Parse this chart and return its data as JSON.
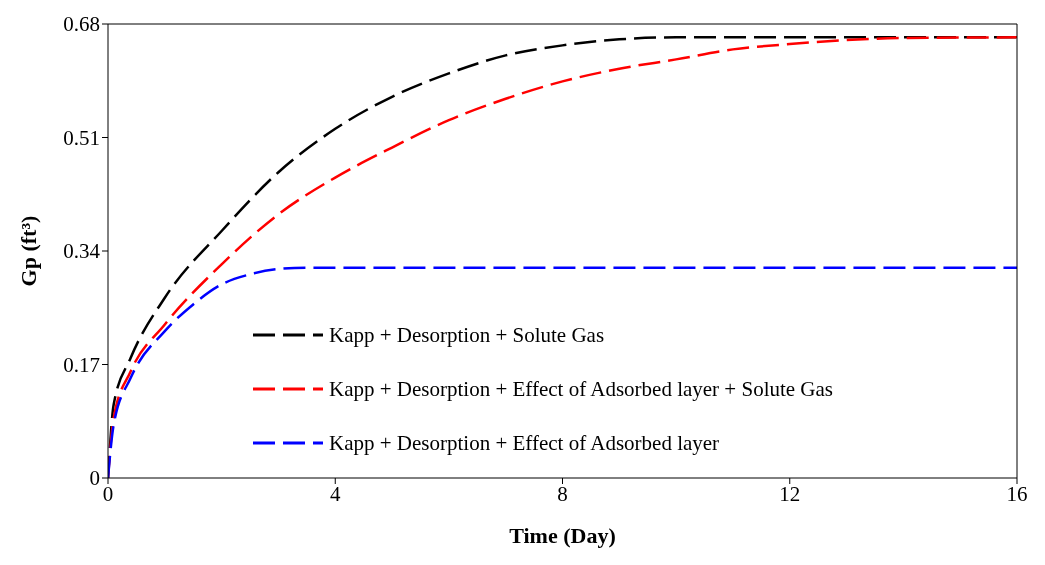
{
  "chart_data": {
    "type": "line",
    "xlabel": "Time (Day)",
    "ylabel": "Gp (ft³)",
    "xlim": [
      0,
      16
    ],
    "xticks": [
      0,
      4,
      8,
      12,
      16
    ],
    "ylim": [
      0,
      0.68
    ],
    "yticks": [
      0,
      0.17,
      0.34,
      0.51,
      0.68
    ],
    "grid": false,
    "legend": "bottom left",
    "marker": "none",
    "series": [
      {
        "name": "Kapp + Desorption + Solute Gas",
        "color": "#000000",
        "line_style": "dashed",
        "x": [
          0,
          0.1,
          0.4,
          1,
          2,
          3,
          4,
          5,
          6,
          7,
          8,
          9,
          10,
          16
        ],
        "values": [
          0,
          0.11,
          0.18,
          0.27,
          0.37,
          0.458,
          0.523,
          0.571,
          0.606,
          0.633,
          0.648,
          0.657,
          0.66,
          0.66
        ]
      },
      {
        "name": "Kapp + Desorption + Effect of Adsorbed layer + Solute Gas",
        "color": "#ff0000",
        "line_style": "dashed",
        "x": [
          0,
          0.1,
          0.4,
          1,
          2,
          3,
          4,
          5,
          6,
          7,
          8,
          9,
          10,
          11,
          12,
          13,
          14,
          16
        ],
        "values": [
          0,
          0.09,
          0.16,
          0.23,
          0.32,
          0.395,
          0.45,
          0.495,
          0.536,
          0.568,
          0.594,
          0.613,
          0.627,
          0.642,
          0.65,
          0.656,
          0.659,
          0.66
        ]
      },
      {
        "name": "Kapp + Desorption + Effect of Adsorbed layer",
        "color": "#0000ff",
        "line_style": "dashed",
        "x": [
          0,
          0.1,
          0.4,
          1,
          1.5,
          2,
          2.5,
          3,
          3.5,
          16
        ],
        "values": [
          0,
          0.08,
          0.15,
          0.22,
          0.26,
          0.29,
          0.305,
          0.313,
          0.315,
          0.315
        ]
      }
    ]
  }
}
